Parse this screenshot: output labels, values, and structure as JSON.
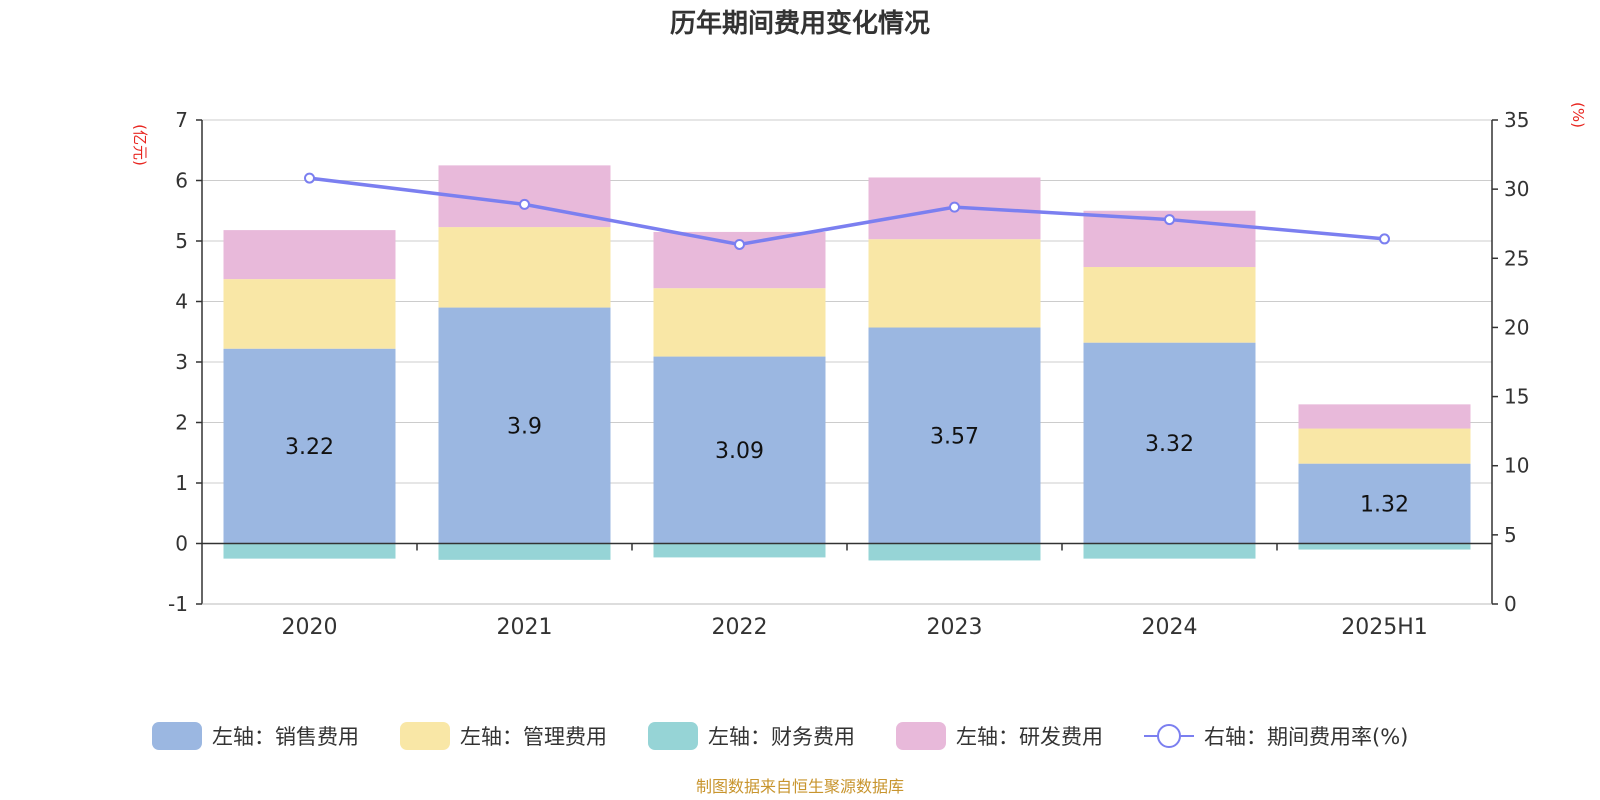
{
  "chart_data": {
    "type": "bar",
    "title": "历年期间费用变化情况",
    "source": "制图数据来自恒生聚源数据库",
    "categories": [
      "2020",
      "2021",
      "2022",
      "2023",
      "2024",
      "2025H1"
    ],
    "left_axis": {
      "unit": "(亿元)",
      "ylim": [
        -1,
        7
      ],
      "ticks": [
        "7",
        "6",
        "5",
        "4",
        "3",
        "2",
        "1",
        "0",
        "-1"
      ]
    },
    "right_axis": {
      "unit": "(%)",
      "ylim": [
        0,
        35
      ],
      "ticks": [
        "35",
        "30",
        "25",
        "20",
        "15",
        "10",
        "5",
        "0"
      ]
    },
    "grid": true,
    "legend_position": "bottom",
    "series": [
      {
        "name": "左轴：销售费用",
        "type": "bar",
        "axis": "left",
        "color": "#9bb7e1",
        "values": [
          3.22,
          3.9,
          3.09,
          3.57,
          3.32,
          1.32
        ],
        "labels": [
          "3.22",
          "3.9",
          "3.09",
          "3.57",
          "3.32",
          "1.32"
        ]
      },
      {
        "name": "左轴：管理费用",
        "type": "bar",
        "axis": "left",
        "color": "#f9e7a6",
        "values": [
          1.15,
          1.33,
          1.13,
          1.46,
          1.25,
          0.58
        ]
      },
      {
        "name": "左轴：财务费用",
        "type": "bar",
        "axis": "left",
        "color": "#96d4d6",
        "values": [
          -0.25,
          -0.27,
          -0.23,
          -0.28,
          -0.25,
          -0.1
        ]
      },
      {
        "name": "左轴：研发费用",
        "type": "bar",
        "axis": "left",
        "color": "#e8b9da",
        "values": [
          0.81,
          1.02,
          0.93,
          1.02,
          0.93,
          0.4
        ]
      },
      {
        "name": "右轴：期间费用率(%)",
        "type": "line",
        "axis": "right",
        "color": "#7b7ff0",
        "values": [
          30.8,
          28.9,
          26.0,
          28.7,
          27.8,
          26.4
        ]
      }
    ]
  }
}
